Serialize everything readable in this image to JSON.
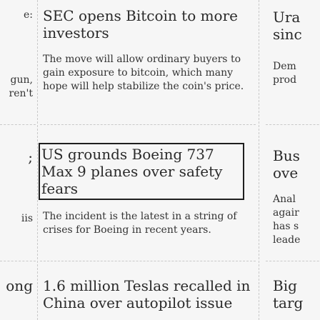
{
  "left_column": {
    "items": [
      {
        "text": "e:"
      },
      {
        "text": "gun,"
      },
      {
        "text": "ren't"
      },
      {
        "text": ";"
      },
      {
        "text": "iis"
      },
      {
        "text": "ong"
      }
    ]
  },
  "articles": [
    {
      "headline": "SEC opens Bitcoin to more investors",
      "summary": "The move will allow ordinary buyers to gain exposure to bitcoin, which many hope will help stabilize the coin's price."
    },
    {
      "headline": "US grounds Boeing 737 Max 9 planes over safety fears",
      "summary": "The incident is the latest in a string of crises for Boeing in recent years."
    },
    {
      "headline": "1.6 million Teslas recalled in China over autopilot issue",
      "summary": ""
    }
  ],
  "right_column": {
    "items": [
      {
        "headline": "Ura",
        "sub": "sinc"
      },
      {
        "summary": [
          "Dem",
          "prod"
        ]
      },
      {
        "headline": [
          "Bus",
          "ove"
        ]
      },
      {
        "summary": [
          "Anal",
          "agair",
          "has s",
          "leade"
        ]
      },
      {
        "headline": [
          "Big",
          "targ"
        ]
      }
    ]
  }
}
